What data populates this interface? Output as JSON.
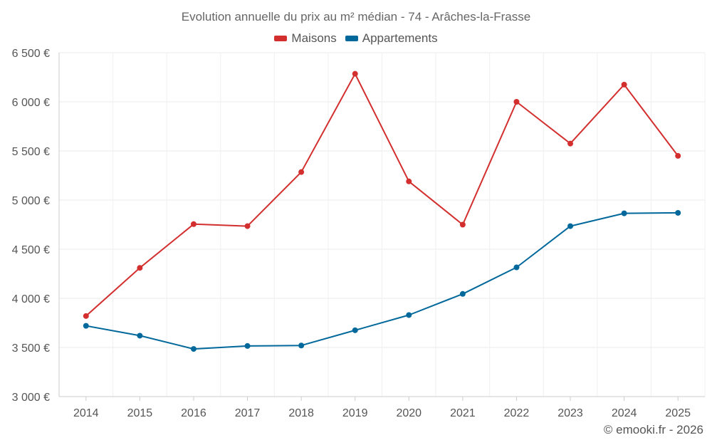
{
  "chart_data": {
    "type": "line",
    "title": "Evolution annuelle du prix au m² médian - 74 - Arâches-la-Frasse",
    "categories": [
      "2014",
      "2015",
      "2016",
      "2017",
      "2018",
      "2019",
      "2020",
      "2021",
      "2022",
      "2023",
      "2024",
      "2025"
    ],
    "series": [
      {
        "name": "Maisons",
        "color": "#d32f2f",
        "values": [
          3820,
          4310,
          4755,
          4735,
          5285,
          6285,
          5190,
          4750,
          6000,
          5575,
          6175,
          5450
        ]
      },
      {
        "name": "Appartements",
        "color": "#01689b",
        "values": [
          3720,
          3620,
          3485,
          3515,
          3520,
          3675,
          3830,
          4045,
          4315,
          4735,
          4865,
          4870
        ]
      }
    ],
    "ylim": [
      3000,
      6500
    ],
    "yticks": [
      3000,
      3500,
      4000,
      4500,
      5000,
      5500,
      6000,
      6500
    ],
    "ytick_labels": [
      "3 000 €",
      "3 500 €",
      "4 000 €",
      "4 500 €",
      "5 000 €",
      "5 500 €",
      "6 000 €",
      "6 500 €"
    ],
    "xlabel": "",
    "ylabel": "",
    "legend_position": "top-center",
    "grid": true
  },
  "credit": "© emooki.fr - 2026"
}
